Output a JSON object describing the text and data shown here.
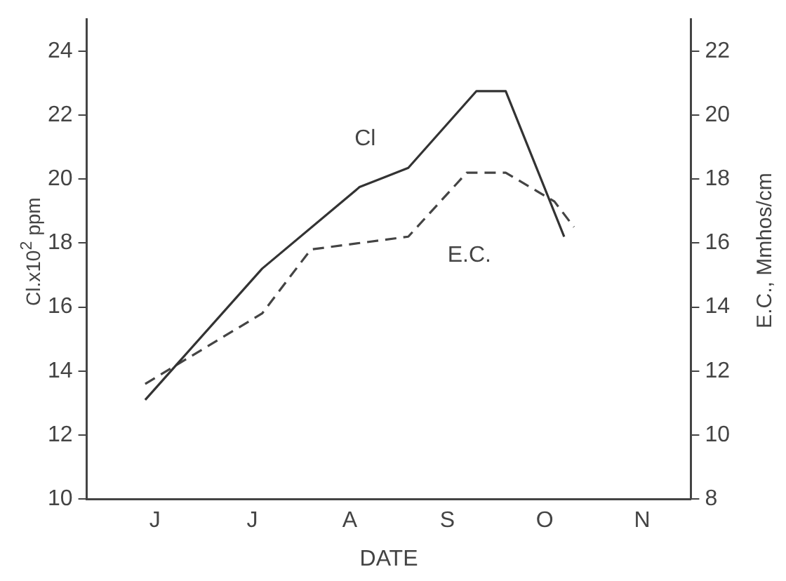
{
  "chart_data": {
    "type": "line",
    "xlabel": "DATE",
    "ylabel": "Cl.x10$^{2}$ ppm",
    "y2label": "E.C., Mmhos/cm",
    "categories": [
      null,
      null,
      null,
      null,
      null,
      null,
      null,
      "J",
      null,
      null,
      null,
      null,
      null,
      null,
      null,
      null,
      null,
      "J",
      null,
      null,
      null,
      null,
      null,
      null,
      null,
      null,
      null,
      "A",
      null,
      null,
      null,
      null,
      null,
      null,
      null,
      null,
      null,
      "S",
      null,
      null,
      null,
      null,
      null,
      null,
      null,
      null,
      null,
      "O",
      null,
      null,
      null,
      null,
      null,
      null,
      null,
      null,
      null,
      "N",
      null,
      null,
      null,
      null,
      null
    ],
    "ylim": [
      10,
      25
    ],
    "yticks": [
      10,
      12,
      14,
      16,
      18,
      20,
      22,
      24
    ],
    "y2lim": [
      8,
      23
    ],
    "y2ticks": [
      8,
      10,
      12,
      14,
      16,
      18,
      20,
      22
    ],
    "grid": false,
    "legend": false,
    "marker": "none",
    "series": [
      {
        "name": "Cl",
        "color": "#333333",
        "line_style": "solid",
        "values": [
          null,
          null,
          null,
          null,
          null,
          null,
          13.1,
          null,
          null,
          null,
          null,
          null,
          null,
          null,
          null,
          null,
          null,
          null,
          17.2,
          null,
          null,
          null,
          null,
          null,
          null,
          null,
          null,
          null,
          19.75,
          null,
          null,
          null,
          null,
          20.35,
          null,
          null,
          null,
          null,
          null,
          null,
          22.75,
          null,
          null,
          22.75,
          null,
          null,
          null,
          null,
          null,
          18.2,
          null,
          null,
          null,
          null,
          null,
          null,
          null,
          null,
          null,
          null,
          null,
          null,
          null
        ]
      },
      {
        "name": "E.C.",
        "color": "#444444",
        "line_style": "dashed",
        "axis": "y2",
        "values": [
          null,
          null,
          null,
          null,
          null,
          null,
          11.6,
          null,
          null,
          null,
          null,
          null,
          null,
          null,
          null,
          null,
          null,
          null,
          13.8,
          null,
          null,
          null,
          null,
          15.8,
          null,
          null,
          null,
          null,
          null,
          null,
          null,
          null,
          null,
          16.2,
          null,
          null,
          null,
          null,
          null,
          18.2,
          null,
          null,
          null,
          18.2,
          null,
          null,
          null,
          null,
          17.3,
          null,
          16.5,
          null,
          null,
          null,
          null,
          null,
          null,
          null,
          null,
          null,
          null,
          null,
          null
        ]
      }
    ]
  }
}
